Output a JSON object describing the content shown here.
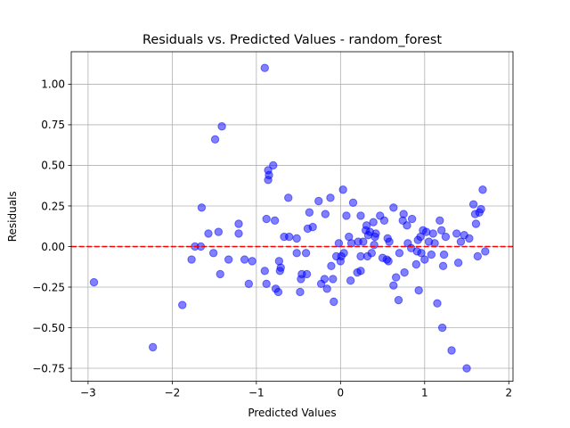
{
  "chart_data": {
    "type": "scatter",
    "title": "Residuals vs. Predicted Values - random_forest",
    "xlabel": "Predicted Values",
    "ylabel": "Residuals",
    "xlim": [
      -3.2,
      2.05
    ],
    "ylim": [
      -0.83,
      1.2
    ],
    "xticks": [
      -3,
      -2,
      -1,
      0,
      1,
      2
    ],
    "xtick_labels": [
      "−3",
      "−2",
      "−1",
      "0",
      "1",
      "2"
    ],
    "yticks": [
      -0.75,
      -0.5,
      -0.25,
      0.0,
      0.25,
      0.5,
      0.75,
      1.0
    ],
    "ytick_labels": [
      "−0.75",
      "−0.50",
      "−0.25",
      "0.00",
      "0.25",
      "0.50",
      "0.75",
      "1.00"
    ],
    "grid": true,
    "reference_line": {
      "y": 0,
      "style": "dashed",
      "color": "#ff0000"
    },
    "marker_color": "#0000ff",
    "marker_opacity": 0.5,
    "points": [
      [
        -2.93,
        -0.22
      ],
      [
        -2.23,
        -0.62
      ],
      [
        -1.88,
        -0.36
      ],
      [
        -1.77,
        -0.08
      ],
      [
        -1.73,
        0.0
      ],
      [
        -1.66,
        0.0
      ],
      [
        -1.65,
        0.24
      ],
      [
        -1.57,
        0.08
      ],
      [
        -1.51,
        -0.04
      ],
      [
        -1.49,
        0.66
      ],
      [
        -1.45,
        0.09
      ],
      [
        -1.43,
        -0.17
      ],
      [
        -1.41,
        0.74
      ],
      [
        -1.33,
        -0.08
      ],
      [
        -1.21,
        0.08
      ],
      [
        -1.21,
        0.14
      ],
      [
        -1.14,
        -0.08
      ],
      [
        -1.09,
        -0.23
      ],
      [
        -1.05,
        -0.09
      ],
      [
        -0.9,
        -0.15
      ],
      [
        -0.9,
        1.1
      ],
      [
        -0.88,
        0.17
      ],
      [
        -0.88,
        -0.23
      ],
      [
        -0.86,
        0.47
      ],
      [
        -0.86,
        0.41
      ],
      [
        -0.85,
        0.44
      ],
      [
        -0.8,
        0.5
      ],
      [
        -0.78,
        0.16
      ],
      [
        -0.77,
        -0.26
      ],
      [
        -0.74,
        -0.28
      ],
      [
        -0.73,
        -0.09
      ],
      [
        -0.72,
        -0.15
      ],
      [
        -0.71,
        -0.13
      ],
      [
        -0.67,
        0.06
      ],
      [
        -0.62,
        0.3
      ],
      [
        -0.61,
        0.06
      ],
      [
        -0.52,
        0.05
      ],
      [
        -0.52,
        -0.04
      ],
      [
        -0.48,
        -0.28
      ],
      [
        -0.47,
        -0.2
      ],
      [
        -0.46,
        -0.17
      ],
      [
        -0.41,
        -0.04
      ],
      [
        -0.4,
        -0.17
      ],
      [
        -0.39,
        0.11
      ],
      [
        -0.37,
        0.21
      ],
      [
        -0.33,
        0.12
      ],
      [
        -0.26,
        0.28
      ],
      [
        -0.23,
        -0.23
      ],
      [
        -0.19,
        -0.2
      ],
      [
        -0.18,
        0.2
      ],
      [
        -0.16,
        -0.26
      ],
      [
        -0.12,
        0.3
      ],
      [
        -0.11,
        -0.12
      ],
      [
        -0.09,
        -0.2
      ],
      [
        -0.08,
        -0.34
      ],
      [
        -0.05,
        -0.06
      ],
      [
        -0.02,
        0.02
      ],
      [
        0.0,
        -0.09
      ],
      [
        0.01,
        -0.06
      ],
      [
        0.03,
        0.35
      ],
      [
        0.04,
        -0.04
      ],
      [
        0.07,
        0.19
      ],
      [
        0.1,
        0.06
      ],
      [
        0.12,
        -0.21
      ],
      [
        0.13,
        0.02
      ],
      [
        0.15,
        0.27
      ],
      [
        0.2,
        -0.16
      ],
      [
        0.21,
        0.03
      ],
      [
        0.24,
        -0.06
      ],
      [
        0.24,
        0.19
      ],
      [
        0.24,
        -0.15
      ],
      [
        0.27,
        0.03
      ],
      [
        0.3,
        0.1
      ],
      [
        0.31,
        0.13
      ],
      [
        0.32,
        -0.06
      ],
      [
        0.33,
        0.07
      ],
      [
        0.35,
        0.09
      ],
      [
        0.37,
        -0.04
      ],
      [
        0.39,
        0.15
      ],
      [
        0.4,
        0.01
      ],
      [
        0.41,
        0.06
      ],
      [
        0.42,
        0.08
      ],
      [
        0.47,
        0.19
      ],
      [
        0.5,
        -0.07
      ],
      [
        0.52,
        0.16
      ],
      [
        0.55,
        -0.08
      ],
      [
        0.56,
        0.05
      ],
      [
        0.57,
        -0.09
      ],
      [
        0.58,
        0.03
      ],
      [
        0.63,
        -0.24
      ],
      [
        0.63,
        0.24
      ],
      [
        0.66,
        -0.19
      ],
      [
        0.69,
        -0.33
      ],
      [
        0.7,
        -0.04
      ],
      [
        0.74,
        0.16
      ],
      [
        0.75,
        0.2
      ],
      [
        0.76,
        -0.16
      ],
      [
        0.79,
        0.13
      ],
      [
        0.8,
        0.02
      ],
      [
        0.84,
        -0.01
      ],
      [
        0.85,
        0.17
      ],
      [
        0.9,
        -0.11
      ],
      [
        0.91,
        -0.03
      ],
      [
        0.92,
        0.04
      ],
      [
        0.93,
        -0.27
      ],
      [
        0.95,
        0.06
      ],
      [
        0.96,
        -0.04
      ],
      [
        0.98,
        0.1
      ],
      [
        1.0,
        -0.08
      ],
      [
        1.02,
        0.09
      ],
      [
        1.05,
        0.03
      ],
      [
        1.08,
        -0.05
      ],
      [
        1.1,
        0.08
      ],
      [
        1.12,
        0.02
      ],
      [
        1.15,
        -0.35
      ],
      [
        1.18,
        0.16
      ],
      [
        1.2,
        0.1
      ],
      [
        1.21,
        -0.5
      ],
      [
        1.22,
        -0.12
      ],
      [
        1.23,
        -0.05
      ],
      [
        1.25,
        0.06
      ],
      [
        1.32,
        -0.64
      ],
      [
        1.38,
        0.08
      ],
      [
        1.4,
        -0.1
      ],
      [
        1.43,
        0.03
      ],
      [
        1.47,
        0.07
      ],
      [
        1.5,
        -0.75
      ],
      [
        1.53,
        0.05
      ],
      [
        1.58,
        0.26
      ],
      [
        1.6,
        0.2
      ],
      [
        1.61,
        0.14
      ],
      [
        1.63,
        -0.06
      ],
      [
        1.65,
        0.21
      ],
      [
        1.67,
        0.23
      ],
      [
        1.69,
        0.35
      ],
      [
        1.72,
        -0.03
      ]
    ]
  }
}
